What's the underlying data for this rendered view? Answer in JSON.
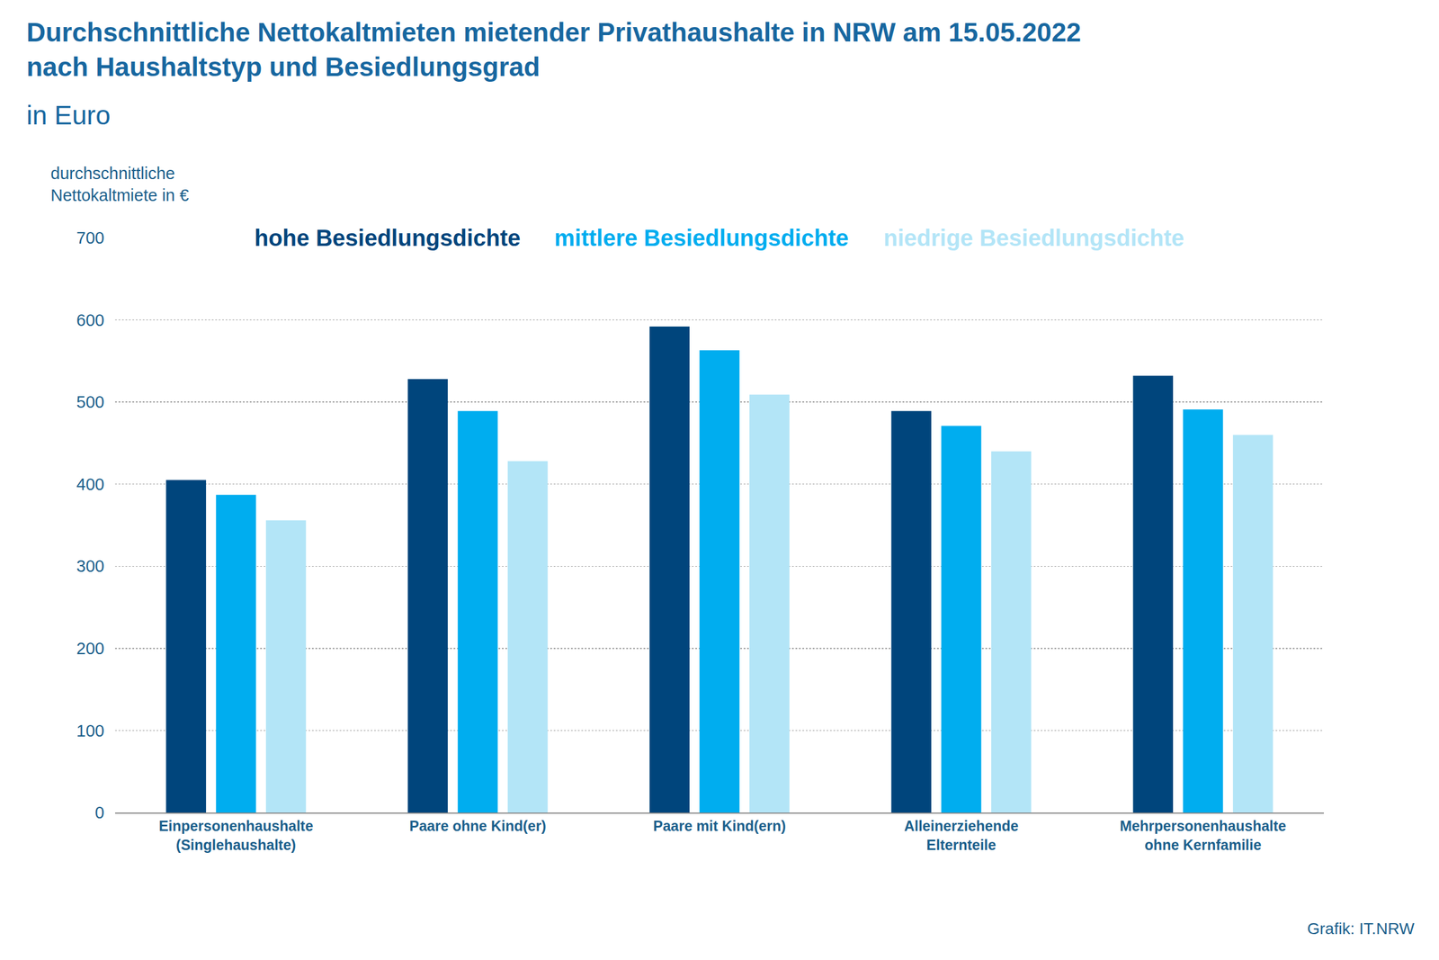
{
  "chart_data": {
    "type": "bar",
    "title": "Durchschnittliche Nettokaltmieten mietender Privathaushalte in NRW am 15.05.2022\nnach Haushaltstyp und Besiedlungsgrad",
    "subtitle": "in Euro",
    "y_label": "durchschnittliche\nNettokaltmiete in €",
    "source": "Grafik: IT.NRW",
    "categories": [
      "Einpersonenhaushalte\n(Singlehaushalte)",
      "Paare ohne Kind(er)",
      "Paare mit Kind(ern)",
      "Alleinerziehende\nElternteile",
      "Mehrpersonenhaushalte\nohne Kernfamilie"
    ],
    "series": [
      {
        "name": "hohe Besiedlungsdichte",
        "color": "#00457c",
        "values": [
          405,
          528,
          592,
          489,
          532
        ]
      },
      {
        "name": "mittlere Besiedlungsdichte",
        "color": "#00adef",
        "values": [
          387,
          489,
          563,
          471,
          491
        ]
      },
      {
        "name": "niedrige Besiedlungsdichte",
        "color": "#b3e5f7",
        "values": [
          356,
          428,
          509,
          440,
          460
        ]
      }
    ],
    "ylim": [
      0,
      700
    ],
    "yticks": [
      0,
      100,
      200,
      300,
      400,
      500,
      600,
      700
    ],
    "grid": true
  }
}
